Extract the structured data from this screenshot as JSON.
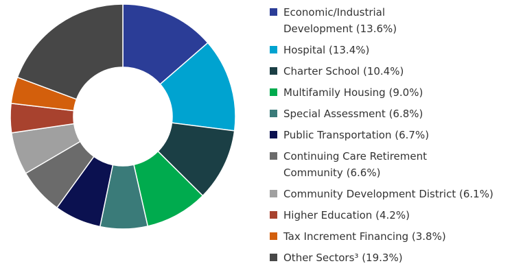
{
  "chart_data": {
    "type": "donut",
    "categories": [
      "Economic/Industrial Development",
      "Hospital",
      "Charter School",
      "Multifamily Housing",
      "Special Assessment",
      "Public Transportation",
      "Continuing Care Retirement Community",
      "Community Development District",
      "Higher Education",
      "Tax Increment Financing",
      "Other Sectors³"
    ],
    "values": [
      13.6,
      13.4,
      10.4,
      9.0,
      6.8,
      6.7,
      6.6,
      6.1,
      4.2,
      3.8,
      19.3
    ],
    "value_labels": [
      "(13.6%)",
      "(13.4%)",
      "(10.4%)",
      "(9.0%)",
      "(6.8%)",
      "(6.7%)",
      "(6.6%)",
      "(6.1%)",
      "(4.2%)",
      "(3.8%)",
      "(19.3%)"
    ],
    "colors": [
      "#2b3d97",
      "#00a3d0",
      "#1b3f45",
      "#00ab4e",
      "#3a7b79",
      "#0b1150",
      "#6b6b6b",
      "#a0a0a0",
      "#a8422e",
      "#d35f0c",
      "#474747"
    ]
  }
}
